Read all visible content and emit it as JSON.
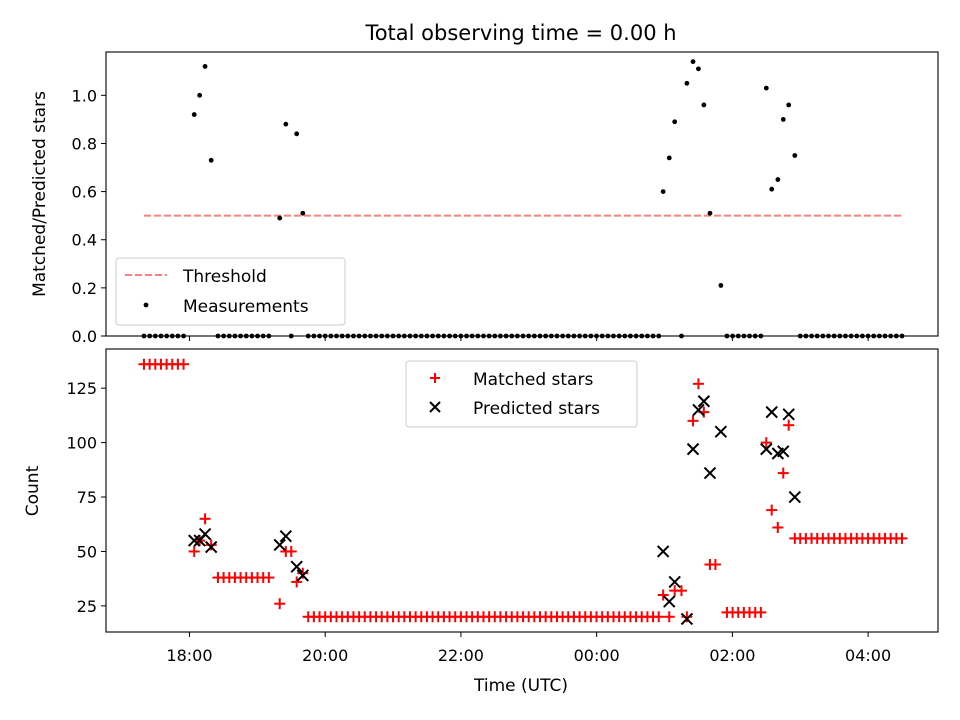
{
  "title": "Total observing time = 0.00 h",
  "chart_data": [
    {
      "type": "scatter",
      "ylabel": "Matched/Predicted stars",
      "xlim_hours": [
        16.77,
        29.03
      ],
      "ylim": [
        0.0,
        1.18
      ],
      "yticks": [
        0.0,
        0.2,
        0.4,
        0.6,
        0.8,
        1.0
      ],
      "ytick_labels": [
        "0.0",
        "0.2",
        "0.4",
        "0.6",
        "0.8",
        "1.0"
      ],
      "legend": {
        "position": "lower-left",
        "entries": [
          "Threshold",
          "Measurements"
        ]
      },
      "threshold": {
        "name": "Threshold",
        "value": 0.5,
        "x_range": [
          17.33,
          28.5
        ],
        "color": "#ff7f7f"
      },
      "measurements": {
        "name": "Measurements",
        "color": "#000000",
        "nonzero": [
          [
            18.07,
            0.92
          ],
          [
            18.15,
            1.0
          ],
          [
            18.23,
            1.12
          ],
          [
            18.32,
            0.73
          ],
          [
            19.33,
            0.49
          ],
          [
            19.42,
            0.88
          ],
          [
            19.58,
            0.84
          ],
          [
            19.67,
            0.51
          ],
          [
            24.98,
            0.6
          ],
          [
            25.07,
            0.74
          ],
          [
            25.15,
            0.89
          ],
          [
            25.33,
            1.05
          ],
          [
            25.42,
            1.14
          ],
          [
            25.5,
            1.11
          ],
          [
            25.58,
            0.96
          ],
          [
            25.67,
            0.51
          ],
          [
            25.83,
            0.21
          ],
          [
            26.5,
            1.03
          ],
          [
            26.58,
            0.61
          ],
          [
            26.67,
            0.65
          ],
          [
            26.75,
            0.9
          ],
          [
            26.83,
            0.96
          ],
          [
            26.92,
            0.75
          ]
        ],
        "zero_ranges": [
          [
            17.33,
            17.92
          ],
          [
            18.42,
            19.25
          ],
          [
            19.5,
            19.5
          ],
          [
            19.75,
            24.92
          ],
          [
            25.25,
            25.25
          ],
          [
            25.92,
            26.42
          ],
          [
            27.0,
            28.5
          ]
        ],
        "zero_step_hours": 0.0833
      }
    },
    {
      "type": "scatter",
      "xlabel": "Time (UTC)",
      "ylabel": "Count",
      "xlim_hours": [
        16.77,
        29.03
      ],
      "ylim": [
        13,
        143
      ],
      "xticks_hours": [
        18,
        20,
        22,
        24,
        26,
        28
      ],
      "xtick_labels": [
        "18:00",
        "20:00",
        "22:00",
        "00:00",
        "02:00",
        "04:00"
      ],
      "yticks": [
        25,
        50,
        75,
        100,
        125
      ],
      "ytick_labels": [
        "25",
        "50",
        "75",
        "100",
        "125"
      ],
      "legend": {
        "position": "top-center",
        "entries": [
          "Matched stars",
          "Predicted stars"
        ]
      },
      "series": [
        {
          "name": "Matched stars",
          "marker": "plus",
          "color": "#ff0000",
          "ranges": [
            {
              "x_range": [
                17.33,
                17.92
              ],
              "value": 136
            },
            {
              "x_range": [
                18.42,
                19.25
              ],
              "value": 38
            },
            {
              "x_range": [
                19.75,
                24.92
              ],
              "value": 20
            },
            {
              "x_range": [
                25.92,
                26.42
              ],
              "value": 22
            },
            {
              "x_range": [
                27.0,
                28.5
              ],
              "value": 56
            }
          ],
          "points": [
            [
              18.07,
              50
            ],
            [
              18.15,
              55
            ],
            [
              18.23,
              65
            ],
            [
              18.32,
              53
            ],
            [
              19.33,
              26
            ],
            [
              19.42,
              50
            ],
            [
              19.5,
              50
            ],
            [
              19.58,
              36
            ],
            [
              19.67,
              40
            ],
            [
              24.98,
              30
            ],
            [
              25.07,
              20
            ],
            [
              25.15,
              32
            ],
            [
              25.25,
              32
            ],
            [
              25.33,
              20
            ],
            [
              25.42,
              110
            ],
            [
              25.5,
              127
            ],
            [
              25.58,
              114
            ],
            [
              25.67,
              44
            ],
            [
              25.75,
              44
            ],
            [
              26.5,
              100
            ],
            [
              26.58,
              69
            ],
            [
              26.67,
              61
            ],
            [
              26.75,
              86
            ],
            [
              26.83,
              108
            ],
            [
              26.92,
              56
            ]
          ]
        },
        {
          "name": "Predicted stars",
          "marker": "x",
          "color": "#000000",
          "points": [
            [
              18.07,
              55
            ],
            [
              18.15,
              55
            ],
            [
              18.23,
              58
            ],
            [
              18.32,
              52
            ],
            [
              19.33,
              53
            ],
            [
              19.42,
              57
            ],
            [
              19.58,
              43
            ],
            [
              19.67,
              39
            ],
            [
              24.98,
              50
            ],
            [
              25.07,
              27
            ],
            [
              25.15,
              36
            ],
            [
              25.33,
              19
            ],
            [
              25.42,
              97
            ],
            [
              25.5,
              115
            ],
            [
              25.58,
              119
            ],
            [
              25.67,
              86
            ],
            [
              25.83,
              105
            ],
            [
              26.5,
              97
            ],
            [
              26.58,
              114
            ],
            [
              26.67,
              95
            ],
            [
              26.75,
              96
            ],
            [
              26.83,
              113
            ],
            [
              26.92,
              75
            ]
          ]
        }
      ]
    }
  ]
}
